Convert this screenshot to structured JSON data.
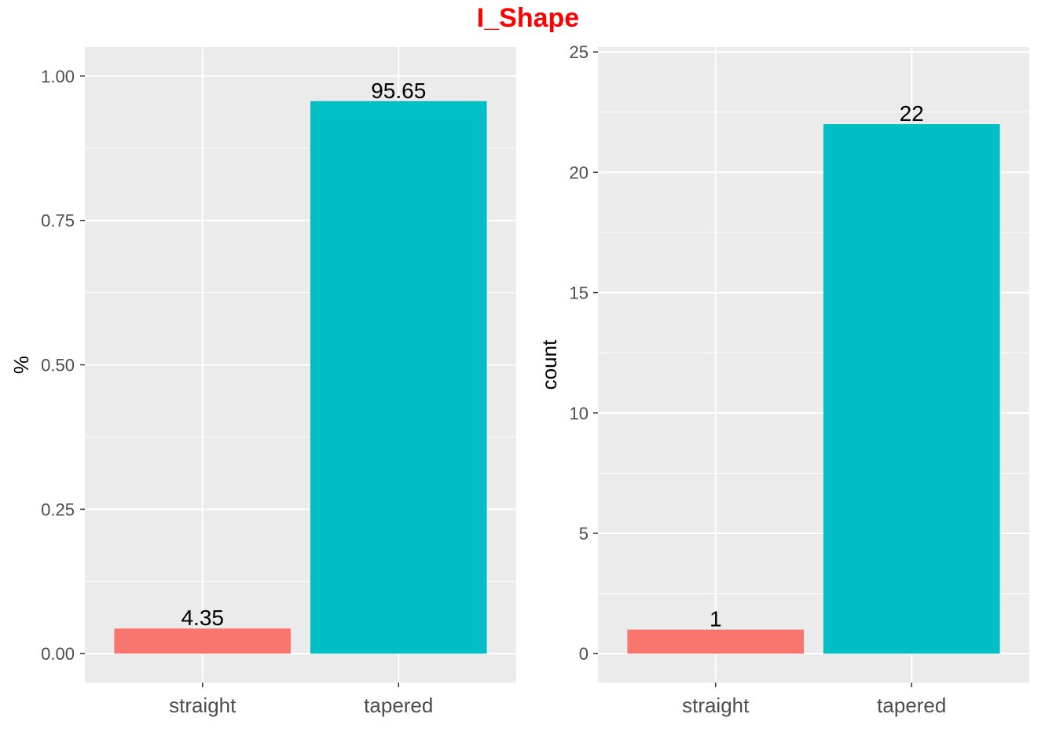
{
  "title": "I_Shape",
  "colors": {
    "title": "#ff0000",
    "panel_background": "#ebebeb",
    "grid": "#ffffff",
    "straight": "#f8766d",
    "tapered": "#00bfc4",
    "tick_text": "#4d4d4d",
    "label_text": "#000000"
  },
  "chart_data": [
    {
      "type": "bar",
      "categories": [
        "straight",
        "tapered"
      ],
      "values": [
        0.0435,
        0.9565
      ],
      "data_labels": [
        "4.35",
        "95.65"
      ],
      "xlabel": "",
      "ylabel": "%",
      "ylim": [
        -0.05,
        1.05
      ],
      "yticks": [
        0,
        0.25,
        0.5,
        0.75,
        1
      ],
      "ytick_labels": [
        "0.00",
        "0.25",
        "0.50",
        "0.75",
        "1.00"
      ],
      "grid": true,
      "legend": "none"
    },
    {
      "type": "bar",
      "categories": [
        "straight",
        "tapered"
      ],
      "values": [
        1,
        22
      ],
      "data_labels": [
        "1",
        "22"
      ],
      "xlabel": "",
      "ylabel": "count",
      "ylim": [
        -1.2,
        25.2
      ],
      "yticks": [
        0,
        5,
        10,
        15,
        20,
        25
      ],
      "ytick_labels": [
        "0",
        "5",
        "10",
        "15",
        "20",
        "25"
      ],
      "grid": true,
      "legend": "none"
    }
  ]
}
